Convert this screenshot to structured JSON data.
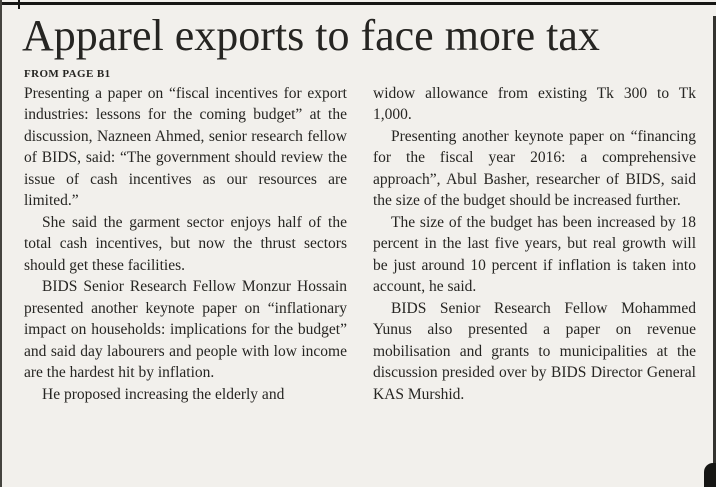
{
  "colors": {
    "paper": "#f2f0ec",
    "ink": "#262522",
    "rule": "#161614"
  },
  "article": {
    "headline": "Apparel exports to face more tax",
    "from_page": "FROM PAGE B1",
    "left_column": [
      "Presenting a paper on “fiscal incentives for export industries: lessons for the coming budget” at the discussion, Nazneen Ahmed, senior research fellow of BIDS, said: “The government should review the issue of cash incentives as our resources are limited.”",
      "She said the garment sector enjoys half of the total cash incentives, but now the thrust sectors should get these facilities.",
      "BIDS Senior Research Fellow Monzur Hossain presented another keynote paper on “inflationary impact on households: implications for the budget” and said day labourers and people with low income are the hardest hit by inflation.",
      "He proposed increasing the elderly and"
    ],
    "right_column": [
      "widow allowance from existing Tk 300 to Tk 1,000.",
      "Presenting another keynote paper on “financing for the fiscal year 2016: a comprehensive approach”, Abul Basher, researcher of BIDS, said the size of the budget should be increased further.",
      "The size of the budget has been increased by 18 percent in the last five years, but real growth will be just around 10 percent if inflation is taken into account, he said.",
      "BIDS Senior Research Fellow Mohammed Yunus also presented a paper on revenue mobilisation and grants to municipalities at the discussion presided over by BIDS Director General KAS Murshid."
    ]
  }
}
